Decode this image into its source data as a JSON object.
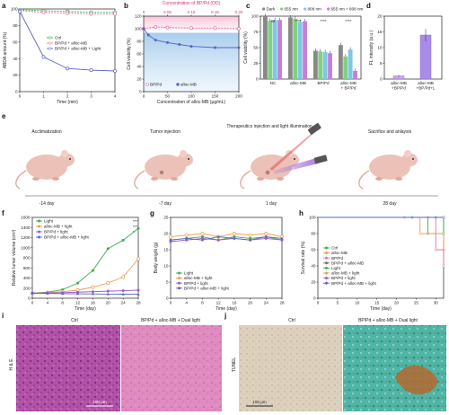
{
  "panels": {
    "a": "a",
    "b": "b",
    "c": "c",
    "d": "d",
    "e": "e",
    "f": "f",
    "g": "g",
    "h": "h",
    "i": "i",
    "j": "j"
  },
  "colors": {
    "green": "#3fae49",
    "pink": "#e86fa8",
    "purple": "#9b59d0",
    "blue": "#5a63c8",
    "orange": "#f39a4e",
    "gray": "#6c6c6c",
    "c_dark": "#888888",
    "c_655": "#7fd17f",
    "c_808": "#7fc6e8",
    "c_both": "#c77fd6"
  },
  "chart_data": [
    {
      "panel": "a",
      "type": "line",
      "xlabel": "Time (min)",
      "ylabel": "ABDA amount (%)",
      "xlim": [
        0,
        4
      ],
      "ylim": [
        0,
        100
      ],
      "xticks": [
        "0",
        "1",
        "2",
        "3",
        "4"
      ],
      "yticks": [
        "0",
        "20",
        "40",
        "60",
        "80",
        "100"
      ],
      "series": [
        {
          "name": "Ctrl",
          "x": [
            0,
            1,
            2,
            3,
            4
          ],
          "values": [
            99,
            98,
            97,
            96,
            96
          ]
        },
        {
          "name": "BP/Pd + alloc-MB",
          "x": [
            0,
            1,
            2,
            3,
            4
          ],
          "values": [
            98,
            96,
            95,
            94,
            94
          ]
        },
        {
          "name": "BP/Pd + alloc-MB + Light",
          "x": [
            0,
            1,
            2,
            3,
            4
          ],
          "values": [
            97,
            42,
            28,
            26,
            25
          ]
        }
      ]
    },
    {
      "panel": "b",
      "type": "line",
      "xlabel": "Concentration of alloc-MB (μg/mL)",
      "x2label": "Concentration of BP/Pd (OD)",
      "ylabel": "Cell viability (%)",
      "xlim": [
        0,
        200
      ],
      "ylim": [
        0,
        120
      ],
      "xticks": [
        "0",
        "50",
        "100",
        "150",
        "200"
      ],
      "x2ticks": [
        "0",
        "0.05",
        "0.10",
        "0.15",
        "0.20"
      ],
      "yticks": [
        "0",
        "20",
        "40",
        "60",
        "80",
        "100",
        "120"
      ],
      "series": [
        {
          "name": "BP/Pd",
          "x": [
            0,
            25,
            50,
            100,
            150,
            200
          ],
          "values": [
            100,
            103,
            102,
            101,
            101,
            100
          ]
        },
        {
          "name": "alloc-MB",
          "x": [
            0,
            10,
            25,
            50,
            75,
            100,
            150,
            200
          ],
          "values": [
            100,
            90,
            82,
            78,
            75,
            72,
            70,
            70
          ]
        }
      ]
    },
    {
      "panel": "c",
      "type": "bar",
      "ylabel": "Cell viability (%)",
      "ylim": [
        0,
        100
      ],
      "yticks": [
        "0",
        "25",
        "50",
        "75",
        "100"
      ],
      "categories": [
        "NC",
        "alloc-MB",
        "BP/Pd",
        "alloc-MB + BP/Pd"
      ],
      "series": [
        {
          "name": "Dark",
          "values": [
            100,
            98,
            45,
            54
          ]
        },
        {
          "name": "655 nm",
          "values": [
            93,
            96,
            44,
            36
          ]
        },
        {
          "name": "808 nm",
          "values": [
            94,
            91,
            43,
            47
          ]
        },
        {
          "name": "655 nm + 808 nm",
          "values": [
            94,
            92,
            41,
            13
          ]
        }
      ],
      "annotations": [
        "ns",
        "****",
        "****",
        "****"
      ]
    },
    {
      "panel": "d",
      "type": "bar",
      "ylabel": "FL intensity (a.u.)",
      "ylim": [
        0,
        20
      ],
      "yticks": [
        "0",
        "5",
        "10",
        "15",
        "20"
      ],
      "categories": [
        "alloc-MB +BP/Pd",
        "alloc-MB +BP/Pd+L"
      ],
      "values": [
        1,
        14
      ]
    },
    {
      "panel": "f",
      "type": "line",
      "xlabel": "Time (day)",
      "ylabel": "Relative tumor volume (cm³)",
      "xlim": [
        0,
        28
      ],
      "ylim": [
        0,
        1600
      ],
      "xticks": [
        "0",
        "4",
        "8",
        "12",
        "16",
        "20",
        "24",
        "28"
      ],
      "yticks": [
        "0",
        "200",
        "400",
        "600",
        "800",
        "1000",
        "1200",
        "1400",
        "1600"
      ],
      "series": [
        {
          "name": "Light",
          "x": [
            0,
            4,
            8,
            12,
            16,
            20,
            24,
            28
          ],
          "values": [
            100,
            120,
            170,
            300,
            550,
            980,
            1150,
            1380
          ]
        },
        {
          "name": "alloc-MB + light",
          "x": [
            0,
            4,
            8,
            12,
            16,
            20,
            24,
            28
          ],
          "values": [
            100,
            110,
            130,
            160,
            220,
            300,
            420,
            780
          ]
        },
        {
          "name": "BP/Pd + light",
          "x": [
            0,
            4,
            8,
            12,
            16,
            20,
            24,
            28
          ],
          "values": [
            100,
            105,
            110,
            120,
            130,
            140,
            150,
            160
          ]
        },
        {
          "name": "BP/Pd + alloc-MB + light",
          "x": [
            0,
            4,
            8,
            12,
            16,
            20,
            24,
            28
          ],
          "values": [
            100,
            95,
            90,
            88,
            85,
            82,
            80,
            78
          ]
        }
      ],
      "annotations": [
        "***",
        "***",
        "*"
      ]
    },
    {
      "panel": "g",
      "type": "line",
      "xlabel": "Time (day)",
      "ylabel": "Body weight (g)",
      "xlim": [
        0,
        28
      ],
      "ylim": [
        0,
        25
      ],
      "xticks": [
        "0",
        "4",
        "8",
        "12",
        "16",
        "20",
        "24",
        "28"
      ],
      "yticks": [
        "0",
        "5",
        "10",
        "15",
        "20",
        "25"
      ],
      "series": [
        {
          "name": "Light",
          "x": [
            0,
            4,
            8,
            12,
            16,
            20,
            24,
            28
          ],
          "values": [
            18,
            18.5,
            19,
            18,
            19,
            18.5,
            19,
            18
          ]
        },
        {
          "name": "alloc-MB + light",
          "x": [
            0,
            4,
            8,
            12,
            16,
            20,
            24,
            28
          ],
          "values": [
            19,
            19.5,
            20,
            19,
            20,
            19.5,
            20,
            19
          ]
        },
        {
          "name": "BP/Pd + light",
          "x": [
            0,
            4,
            8,
            12,
            16,
            20,
            24,
            28
          ],
          "values": [
            17.5,
            18,
            18.5,
            18,
            18.5,
            18,
            18.5,
            18
          ]
        },
        {
          "name": "BP/Pd + alloc-MB + light",
          "x": [
            0,
            4,
            8,
            12,
            16,
            20,
            24,
            28
          ],
          "values": [
            18,
            18.5,
            18,
            19,
            18.5,
            18,
            19,
            18.5
          ]
        }
      ]
    },
    {
      "panel": "h",
      "type": "line",
      "xlabel": "Time (day)",
      "ylabel": "Survival rate (%)",
      "xlim": [
        0,
        32
      ],
      "ylim": [
        0,
        100
      ],
      "xticks": [
        "0",
        "5",
        "10",
        "15",
        "20",
        "25",
        "30"
      ],
      "yticks": [
        "0",
        "20",
        "40",
        "60",
        "80",
        "100"
      ],
      "series": [
        {
          "name": "Ctrl",
          "x": [
            0,
            24,
            28,
            32
          ],
          "values": [
            100,
            100,
            80,
            80
          ]
        },
        {
          "name": "alloc-MB",
          "x": [
            0,
            22,
            26,
            32
          ],
          "values": [
            100,
            100,
            80,
            60
          ]
        },
        {
          "name": "BP/Pd",
          "x": [
            0,
            28,
            30,
            32
          ],
          "values": [
            100,
            100,
            60,
            40
          ]
        },
        {
          "name": "BP/Pd + alloc-MB",
          "x": [
            0,
            32
          ],
          "values": [
            100,
            100
          ]
        },
        {
          "name": "Light",
          "x": [
            0,
            30,
            32
          ],
          "values": [
            100,
            100,
            80
          ]
        },
        {
          "name": "alloc-MB + light",
          "x": [
            0,
            32
          ],
          "values": [
            100,
            100
          ]
        },
        {
          "name": "BP/Pd + light",
          "x": [
            0,
            32
          ],
          "values": [
            100,
            100
          ]
        },
        {
          "name": "BP/Pd + alloc-MB + light",
          "x": [
            0,
            32
          ],
          "values": [
            100,
            100
          ]
        }
      ]
    }
  ],
  "timeline": {
    "stages": [
      "Acclimatization",
      "Tumor injection",
      "Therapeutics injection and light illumination",
      "Sacrifice and anlaysis"
    ],
    "days": [
      "-14 day",
      "-7 day",
      "1 day",
      "28 day"
    ]
  },
  "histology": {
    "i_ylabel": "H & E",
    "i_titles": [
      "Ctrl",
      "BP/Pd + alloc-MB + Dual light"
    ],
    "j_ylabel": "TUNEL",
    "j_titles": [
      "Ctrl",
      "BP/Pd + alloc-MB + Dual light"
    ],
    "scale": "100 μm"
  }
}
